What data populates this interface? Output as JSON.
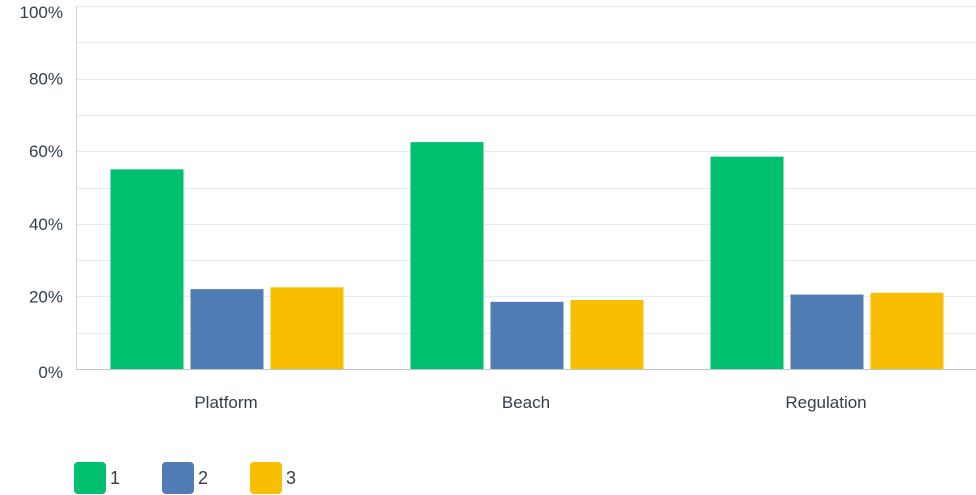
{
  "chart_data": {
    "type": "bar",
    "categories": [
      "Platform",
      "Beach",
      "Regulation"
    ],
    "series": [
      {
        "name": "1",
        "color": "#00bf6f",
        "values": [
          55,
          62.5,
          58.5
        ]
      },
      {
        "name": "2",
        "color": "#507cb6",
        "values": [
          22,
          18.5,
          20.5
        ]
      },
      {
        "name": "3",
        "color": "#f9be00",
        "values": [
          22.5,
          19,
          21
        ]
      }
    ],
    "yticks": [
      "0%",
      "20%",
      "40%",
      "60%",
      "80%",
      "100%"
    ],
    "ylim": [
      0,
      100
    ],
    "grid": true,
    "legend_position": "bottom-left"
  }
}
